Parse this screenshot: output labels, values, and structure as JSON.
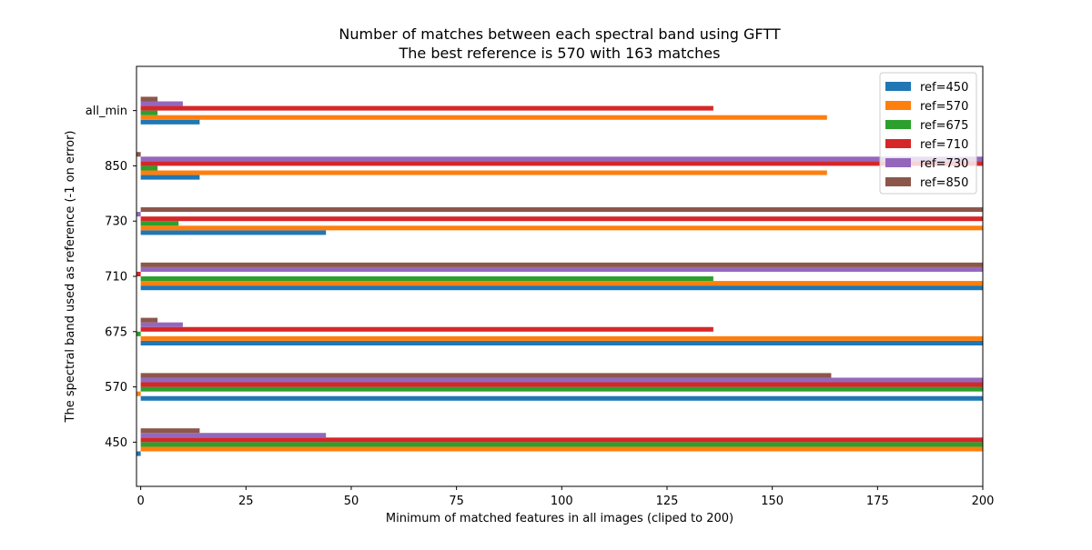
{
  "chart_data": {
    "type": "bar",
    "orientation": "horizontal",
    "title": "Number of matches between each spectral band using GFTT",
    "subtitle": "The best reference is 570 with 163 matches",
    "xlabel": "Minimum of matched features in all images (cliped to 200)",
    "ylabel": "The spectral band used as reference (-1 on error)",
    "xlim": [
      -1,
      200
    ],
    "xticks": [
      0,
      25,
      50,
      75,
      100,
      125,
      150,
      175,
      200
    ],
    "categories": [
      "450",
      "570",
      "675",
      "710",
      "730",
      "850",
      "all_min"
    ],
    "series": [
      {
        "name": "ref=450",
        "color": "#1f77b4",
        "values": [
          -1,
          200,
          200,
          200,
          44,
          14,
          14
        ]
      },
      {
        "name": "ref=570",
        "color": "#ff7f0e",
        "values": [
          200,
          -1,
          200,
          200,
          200,
          163,
          163
        ]
      },
      {
        "name": "ref=675",
        "color": "#2ca02c",
        "values": [
          200,
          200,
          -1,
          136,
          9,
          4,
          4
        ]
      },
      {
        "name": "ref=710",
        "color": "#d62728",
        "values": [
          200,
          200,
          136,
          -1,
          200,
          200,
          136
        ]
      },
      {
        "name": "ref=730",
        "color": "#9467bd",
        "values": [
          44,
          200,
          10,
          200,
          -1,
          200,
          10
        ]
      },
      {
        "name": "ref=850",
        "color": "#8c564b",
        "values": [
          14,
          164,
          4,
          200,
          200,
          -1,
          4
        ]
      }
    ],
    "legend_position": "upper right",
    "grid": false
  }
}
